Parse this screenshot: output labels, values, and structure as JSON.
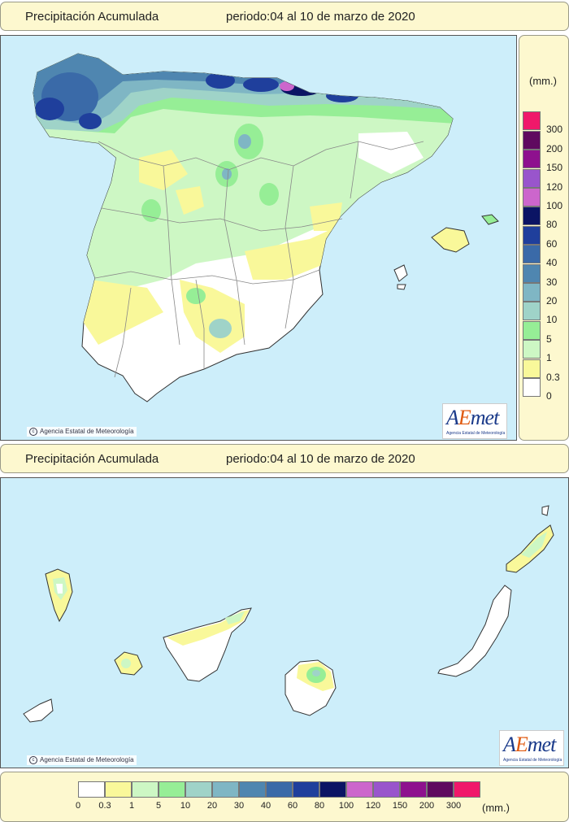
{
  "top_title": {
    "left": "Precipitación Acumulada",
    "right": "periodo:04 al 10 de marzo de 2020"
  },
  "mid_title": {
    "left": "Precipitación Acumulada",
    "right": "periodo:04 al 10 de marzo de 2020"
  },
  "copyright": "Agencia Estatal de Meteorología",
  "logo": {
    "brand_a": "A",
    "brand_e": "E",
    "brand_rest": "met",
    "sub": "Agencia Estatal de Meteorología"
  },
  "legend": {
    "unit": "(mm.)",
    "thresholds": [
      "0",
      "0.3",
      "1",
      "5",
      "10",
      "20",
      "30",
      "40",
      "60",
      "80",
      "100",
      "120",
      "150",
      "200",
      "300"
    ],
    "colors": [
      "#ffffff",
      "#f9f89a",
      "#cdf7c4",
      "#96ee96",
      "#9fd3c8",
      "#7fb6c4",
      "#4f86b0",
      "#3a6aa8",
      "#1f3f9c",
      "#0b1464",
      "#cc66cc",
      "#9955cc",
      "#8e118e",
      "#5f0a5f",
      "#f0186a"
    ]
  }
}
